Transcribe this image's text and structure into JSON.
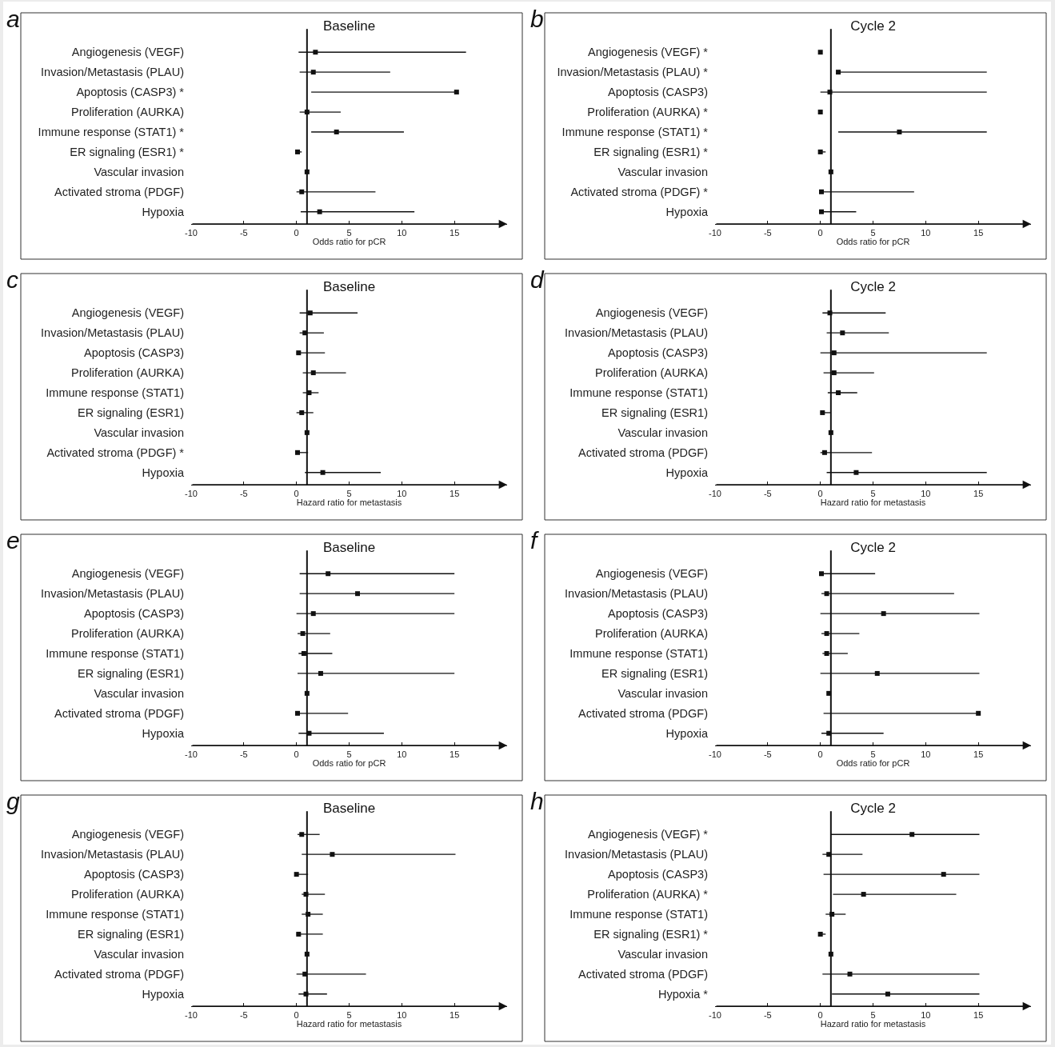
{
  "chart_data": [
    {
      "type": "scatter",
      "orientation": "horizontal",
      "title": "Baseline",
      "xlabel": "Odds ratio for pCR",
      "annotations": [
        "a"
      ],
      "color": "#111111",
      "marker": "square",
      "grid": false,
      "xlim": [
        -10,
        20
      ],
      "xticks": [
        -10,
        -5,
        0,
        5,
        10,
        15
      ],
      "ref_lines": [
        {
          "axis": "x",
          "value": 1
        }
      ],
      "categories": [
        "Angiogenesis (VEGF)",
        "Invasion/Metastasis (PLAU)",
        "Apoptosis (CASP3) *",
        "Proliferation (AURKA)",
        "Immune response (STAT1) *",
        "ER signaling (ESR1) *",
        "Vascular invasion",
        "Activated stroma (PDGF)",
        "Hypoxia"
      ],
      "values": [
        1.8,
        1.6,
        15.2,
        1.0,
        3.8,
        0.1,
        1.0,
        0.5,
        2.2
      ],
      "errors": [
        [
          0.2,
          16.1
        ],
        [
          0.3,
          8.9
        ],
        [
          1.4,
          15.3
        ],
        [
          0.3,
          4.2
        ],
        [
          1.4,
          10.2
        ],
        [
          0,
          0.5
        ],
        null,
        [
          0,
          7.5
        ],
        [
          0.4,
          11.2
        ]
      ]
    },
    {
      "type": "scatter",
      "orientation": "horizontal",
      "title": "Cycle 2",
      "xlabel": "Odds ratio for pCR",
      "annotations": [
        "b"
      ],
      "color": "#111111",
      "marker": "square",
      "grid": false,
      "xlim": [
        -10,
        20
      ],
      "xticks": [
        -10,
        -5,
        0,
        5,
        10,
        15
      ],
      "ref_lines": [
        {
          "axis": "x",
          "value": 1
        }
      ],
      "categories": [
        "Angiogenesis (VEGF) *",
        "Invasion/Metastasis (PLAU) *",
        "Apoptosis (CASP3)",
        "Proliferation (AURKA) *",
        "Immune response (STAT1) *",
        "ER signaling (ESR1) *",
        "Vascular invasion",
        "Activated stroma (PDGF) *",
        "Hypoxia"
      ],
      "values": [
        0,
        1.7,
        0.9,
        0,
        7.5,
        0,
        1.0,
        0.1,
        0.1
      ],
      "errors": [
        null,
        [
          1.6,
          15.8
        ],
        [
          0,
          15.8
        ],
        null,
        [
          1.7,
          15.8
        ],
        [
          0,
          0.5
        ],
        null,
        [
          0,
          8.9
        ],
        [
          0,
          3.4
        ]
      ]
    },
    {
      "type": "scatter",
      "orientation": "horizontal",
      "title": "Baseline",
      "xlabel": "Hazard ratio for metastasis",
      "annotations": [
        "c"
      ],
      "color": "#111111",
      "marker": "square",
      "grid": false,
      "xlim": [
        -10,
        20
      ],
      "xticks": [
        -10,
        -5,
        0,
        5,
        10,
        15
      ],
      "ref_lines": [
        {
          "axis": "x",
          "value": 1
        }
      ],
      "categories": [
        "Angiogenesis (VEGF)",
        "Invasion/Metastasis (PLAU)",
        "Apoptosis (CASP3)",
        "Proliferation (AURKA)",
        "Immune response (STAT1)",
        "ER signaling (ESR1)",
        "Vascular invasion",
        "Activated stroma (PDGF) *",
        "Hypoxia"
      ],
      "values": [
        1.3,
        0.8,
        0.2,
        1.6,
        1.2,
        0.5,
        1.0,
        0.1,
        2.5
      ],
      "errors": [
        [
          0.3,
          5.8
        ],
        [
          0.3,
          2.6
        ],
        [
          0,
          2.7
        ],
        [
          0.6,
          4.7
        ],
        [
          0.6,
          2.1
        ],
        [
          0,
          1.6
        ],
        null,
        [
          0,
          1.1
        ],
        [
          0.8,
          8.0
        ]
      ]
    },
    {
      "type": "scatter",
      "orientation": "horizontal",
      "title": "Cycle 2",
      "xlabel": "Hazard ratio for metastasis",
      "annotations": [
        "d"
      ],
      "color": "#111111",
      "marker": "square",
      "grid": false,
      "xlim": [
        -10,
        20
      ],
      "xticks": [
        -10,
        -5,
        0,
        5,
        10,
        15
      ],
      "ref_lines": [
        {
          "axis": "x",
          "value": 1
        }
      ],
      "categories": [
        "Angiogenesis (VEGF)",
        "Invasion/Metastasis (PLAU)",
        "Apoptosis (CASP3)",
        "Proliferation (AURKA)",
        "Immune response (STAT1)",
        "ER signaling (ESR1)",
        "Vascular invasion",
        "Activated stroma (PDGF)",
        "Hypoxia"
      ],
      "values": [
        0.9,
        2.1,
        1.3,
        1.3,
        1.7,
        0.2,
        1.0,
        0.4,
        3.4
      ],
      "errors": [
        [
          0.2,
          6.2
        ],
        [
          0.6,
          6.5
        ],
        [
          0,
          15.8
        ],
        [
          0.3,
          5.1
        ],
        [
          0.7,
          3.5
        ],
        [
          0,
          1.0
        ],
        null,
        [
          0,
          4.9
        ],
        [
          0.6,
          15.8
        ]
      ]
    },
    {
      "type": "scatter",
      "orientation": "horizontal",
      "title": "Baseline",
      "xlabel": "Odds ratio for pCR",
      "annotations": [
        "e"
      ],
      "color": "#111111",
      "marker": "square",
      "grid": false,
      "xlim": [
        -10,
        20
      ],
      "xticks": [
        -10,
        -5,
        0,
        5,
        10,
        15
      ],
      "ref_lines": [
        {
          "axis": "x",
          "value": 1
        }
      ],
      "categories": [
        "Angiogenesis (VEGF)",
        "Invasion/Metastasis (PLAU)",
        "Apoptosis (CASP3)",
        "Proliferation (AURKA)",
        "Immune response (STAT1)",
        "ER signaling (ESR1)",
        "Vascular invasion",
        "Activated stroma (PDGF)",
        "Hypoxia"
      ],
      "values": [
        3.0,
        5.8,
        1.6,
        0.6,
        0.7,
        2.3,
        1.0,
        0.1,
        1.2
      ],
      "errors": [
        [
          0.3,
          15
        ],
        [
          0.3,
          15
        ],
        [
          0,
          15
        ],
        [
          0.1,
          3.2
        ],
        [
          0.2,
          3.4
        ],
        [
          0.1,
          15
        ],
        null,
        [
          0,
          4.9
        ],
        [
          0.2,
          8.3
        ]
      ]
    },
    {
      "type": "scatter",
      "orientation": "horizontal",
      "title": "Cycle 2",
      "xlabel": "Odds ratio for pCR",
      "annotations": [
        "f"
      ],
      "color": "#111111",
      "marker": "square",
      "grid": false,
      "xlim": [
        -10,
        20
      ],
      "xticks": [
        -10,
        -5,
        0,
        5,
        10,
        15
      ],
      "ref_lines": [
        {
          "axis": "x",
          "value": 1
        }
      ],
      "categories": [
        "Angiogenesis (VEGF)",
        "Invasion/Metastasis (PLAU)",
        "Apoptosis (CASP3)",
        "Proliferation (AURKA)",
        "Immune response (STAT1)",
        "ER signaling (ESR1)",
        "Vascular invasion",
        "Activated stroma (PDGF)",
        "Hypoxia"
      ],
      "values": [
        0.1,
        0.6,
        6.0,
        0.6,
        0.6,
        5.4,
        0.8,
        15.0,
        0.8
      ],
      "errors": [
        [
          0.1,
          5.2
        ],
        [
          0.1,
          12.7
        ],
        [
          0,
          15.1
        ],
        [
          0.1,
          3.7
        ],
        [
          0.2,
          2.6
        ],
        [
          0,
          15.1
        ],
        null,
        [
          0.3,
          15.1
        ],
        [
          0.1,
          6.0
        ]
      ]
    },
    {
      "type": "scatter",
      "orientation": "horizontal",
      "title": "Baseline",
      "xlabel": "Hazard ratio for metastasis",
      "annotations": [
        "g"
      ],
      "color": "#111111",
      "marker": "square",
      "grid": false,
      "xlim": [
        -10,
        20
      ],
      "xticks": [
        -10,
        -5,
        0,
        5,
        10,
        15
      ],
      "ref_lines": [
        {
          "axis": "x",
          "value": 1
        }
      ],
      "categories": [
        "Angiogenesis (VEGF)",
        "Invasion/Metastasis (PLAU)",
        "Apoptosis (CASP3)",
        "Proliferation (AURKA)",
        "Immune response (STAT1)",
        "ER signaling (ESR1)",
        "Vascular invasion",
        "Activated stroma (PDGF)",
        "Hypoxia"
      ],
      "values": [
        0.5,
        3.4,
        0,
        0.9,
        1.1,
        0.2,
        1.0,
        0.8,
        0.9
      ],
      "errors": [
        [
          0.1,
          2.2
        ],
        [
          0.5,
          15.1
        ],
        [
          0,
          1.1
        ],
        [
          0.5,
          2.7
        ],
        [
          0.5,
          2.5
        ],
        [
          0,
          2.5
        ],
        null,
        [
          0,
          6.6
        ],
        [
          0.2,
          2.9
        ]
      ]
    },
    {
      "type": "scatter",
      "orientation": "horizontal",
      "title": "Cycle 2",
      "xlabel": "Hazard ratio for metastasis",
      "annotations": [
        "h"
      ],
      "color": "#111111",
      "marker": "square",
      "grid": false,
      "xlim": [
        -10,
        20
      ],
      "xticks": [
        -10,
        -5,
        0,
        5,
        10,
        15
      ],
      "ref_lines": [
        {
          "axis": "x",
          "value": 1
        }
      ],
      "categories": [
        "Angiogenesis (VEGF) *",
        "Invasion/Metastasis (PLAU)",
        "Apoptosis (CASP3)",
        "Proliferation (AURKA) *",
        "Immune response (STAT1)",
        "ER signaling (ESR1) *",
        "Vascular invasion",
        "Activated stroma (PDGF)",
        "Hypoxia *"
      ],
      "values": [
        8.7,
        0.8,
        11.7,
        4.1,
        1.1,
        0,
        1.0,
        2.8,
        6.4
      ],
      "errors": [
        [
          1.0,
          15.1
        ],
        [
          0.2,
          4.0
        ],
        [
          0.3,
          15.1
        ],
        [
          1.2,
          12.9
        ],
        [
          0.5,
          2.4
        ],
        [
          0,
          0.5
        ],
        null,
        [
          0.2,
          15.1
        ],
        [
          1.1,
          15.1
        ]
      ]
    }
  ]
}
